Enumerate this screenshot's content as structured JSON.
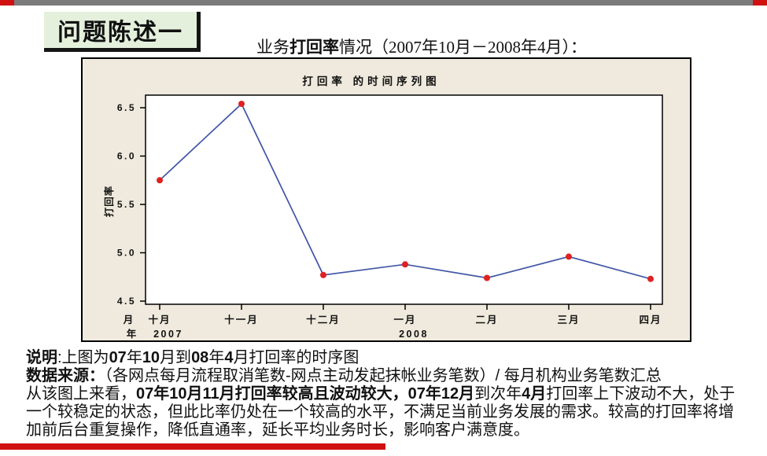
{
  "colors": {
    "top_bar_gray": "#7b7b7b",
    "accent_red": "#cf1110",
    "title_box_green": "#e4f0dc",
    "panel_beige": "#efeadd",
    "plot_white": "#ffffff",
    "line_blue": "#4156a6",
    "point_red": "#e02121",
    "border_black": "#000000"
  },
  "title_box": {
    "label": "问题陈述一"
  },
  "heading": {
    "pre": "业务",
    "emph": "打回率",
    "post": "情况（2007年10月－2008年4月）："
  },
  "chart_data": {
    "type": "line",
    "title": "打回率  的时间序列图",
    "ylabel": "打回率",
    "categories": [
      "十月",
      "十一月",
      "十二月",
      "一月",
      "二月",
      "三月",
      "四月"
    ],
    "values": [
      5.75,
      6.54,
      4.77,
      4.88,
      4.74,
      4.96,
      4.73
    ],
    "ylim": [
      4.5,
      6.5
    ],
    "yticks": [
      "4.5",
      "5.0",
      "5.5",
      "6.0",
      "6.5"
    ],
    "x_row_label_month": "月",
    "x_row_label_year": "年",
    "year_ticks": [
      {
        "label": "2007",
        "index": 0
      },
      {
        "label": "2008",
        "index": 3
      }
    ],
    "grid": false,
    "legend": "none",
    "line_color": "#4156a6",
    "point_color": "#e02121"
  },
  "notes": {
    "paragraphs": [
      [
        {
          "t": "说明",
          "b": true
        },
        {
          "t": ":上图为",
          "b": false
        },
        {
          "t": "07",
          "b": true
        },
        {
          "t": "年",
          "b": false
        },
        {
          "t": "10",
          "b": true
        },
        {
          "t": "月到",
          "b": false
        },
        {
          "t": "08",
          "b": true
        },
        {
          "t": "年",
          "b": false
        },
        {
          "t": "4",
          "b": true
        },
        {
          "t": "月打回率的时序图",
          "b": false
        }
      ],
      [
        {
          "t": "数据来源：",
          "b": true
        },
        {
          "t": "（各网点每月流程取消笔数-网点主动发起抹帐业务笔数）/ 每月机构业务笔数汇总",
          "b": false
        }
      ],
      [
        {
          "t": "从该图上来看，",
          "b": false
        },
        {
          "t": "07年10月11月打回率较高且波动较大，",
          "b": true
        },
        {
          "t": "07年12月",
          "b": true
        },
        {
          "t": "到次年",
          "b": false
        },
        {
          "t": "4月",
          "b": true
        },
        {
          "t": "打回率上下波动不大，处于一个较稳定的状态，但此比率仍处在一个较高的水平，不满足当前业务发展的需求。较高的打回率将增加前后台重复操作，降低直通率，延长平均业务时长，影响客户满意度。",
          "b": false
        }
      ]
    ]
  }
}
